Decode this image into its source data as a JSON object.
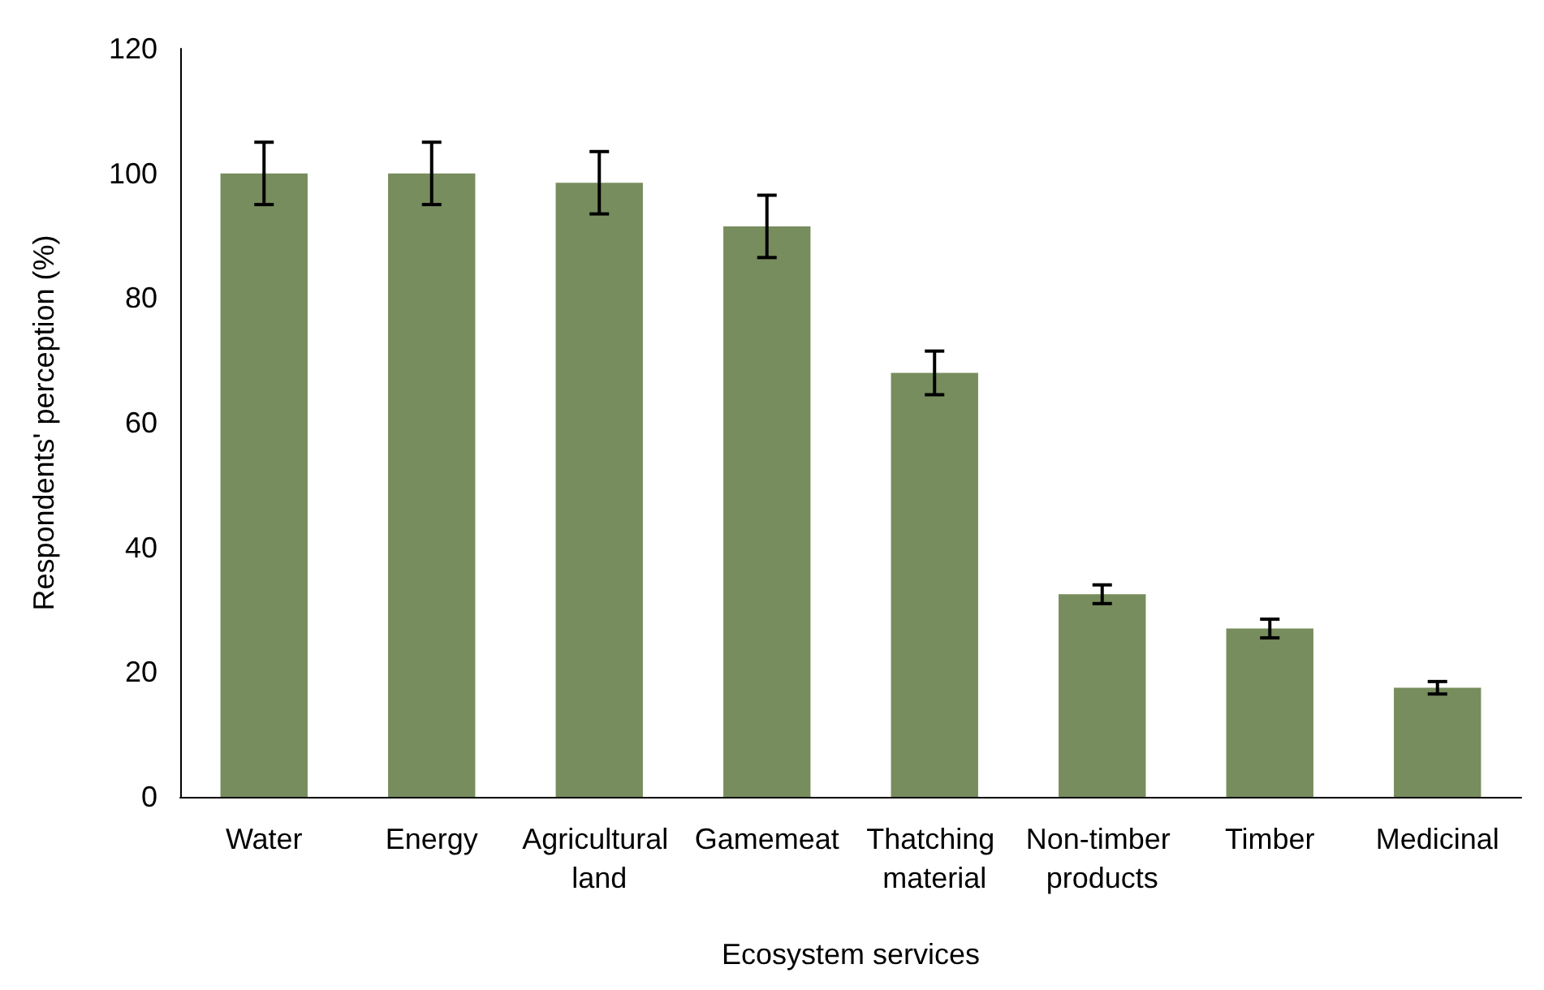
{
  "chart_data": {
    "type": "bar",
    "xlabel": "Ecosystem services",
    "ylabel": "Respondents' perception (%)",
    "categories": [
      "Water",
      "Energy",
      "Agricultural land",
      "Gamemeat",
      "Thatching material",
      "Non-timber products",
      "Timber",
      "Medicinal"
    ],
    "values": [
      100,
      100,
      98.5,
      91.5,
      68,
      32.5,
      27,
      17.5
    ],
    "errors": [
      5,
      5,
      5,
      5,
      3.5,
      1.5,
      1.5,
      1
    ],
    "color": "#778d5d",
    "ylim": [
      0,
      120
    ],
    "yticks": [
      0,
      20,
      40,
      60,
      80,
      100,
      120
    ],
    "grid": false
  }
}
